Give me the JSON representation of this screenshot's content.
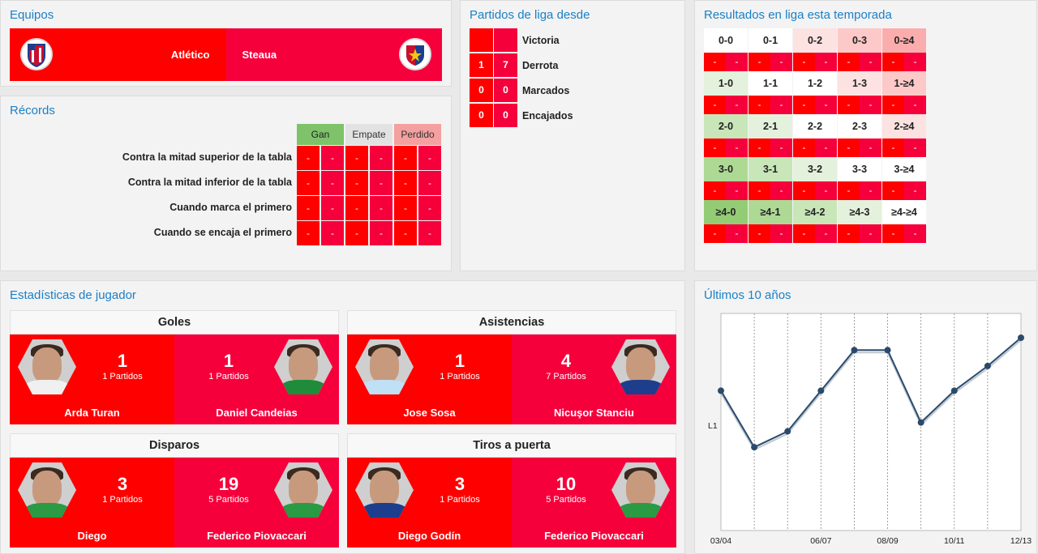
{
  "teams": {
    "title": "Equipos",
    "home": {
      "name": "Atlético",
      "crest": "atletico-crest-icon"
    },
    "away": {
      "name": "Steaua",
      "crest": "steaua-crest-icon"
    }
  },
  "records": {
    "title": "Récords",
    "columns": [
      "Gan",
      "Empate",
      "Perdido"
    ],
    "column_colors": [
      "#7ec26a",
      "#e2e2e2",
      "#f4a0a0"
    ],
    "rows": [
      {
        "label": "Contra la mitad superior de la tabla",
        "cells": [
          "-",
          "-",
          "-",
          "-",
          "-",
          "-"
        ]
      },
      {
        "label": "Contra la mitad inferior de la tabla",
        "cells": [
          "-",
          "-",
          "-",
          "-",
          "-",
          "-"
        ]
      },
      {
        "label": "Cuando marca el primero",
        "cells": [
          "-",
          "-",
          "-",
          "-",
          "-",
          "-"
        ]
      },
      {
        "label": "Cuando se encaja el primero",
        "cells": [
          "-",
          "-",
          "-",
          "-",
          "-",
          "-"
        ]
      }
    ]
  },
  "league_since": {
    "title": "Partidos de liga desde",
    "rows": [
      {
        "label": "Victoria",
        "home": "",
        "away": ""
      },
      {
        "label": "Derrota",
        "home": "1",
        "away": "7"
      },
      {
        "label": "Marcados",
        "home": "0",
        "away": "0"
      },
      {
        "label": "Encajados",
        "home": "0",
        "away": "0"
      }
    ]
  },
  "season_results": {
    "title": "Resultados en liga esta temporada",
    "rows": [
      {
        "scores": [
          "0-0",
          "0-1",
          "0-2",
          "0-3",
          "0-≥4"
        ],
        "colors": [
          "#ffffff",
          "#ffffff",
          "#fde2e2",
          "#fcc8c8",
          "#fbadad"
        ],
        "subs": [
          "-",
          "-",
          "-",
          "-",
          "-",
          "-",
          "-",
          "-",
          "-",
          "-"
        ]
      },
      {
        "scores": [
          "1-0",
          "1-1",
          "1-2",
          "1-3",
          "1-≥4"
        ],
        "colors": [
          "#e4f1dc",
          "#ffffff",
          "#ffffff",
          "#fde2e2",
          "#fcc8c8"
        ],
        "subs": [
          "-",
          "-",
          "-",
          "-",
          "-",
          "-",
          "-",
          "-",
          "-",
          "-"
        ]
      },
      {
        "scores": [
          "2-0",
          "2-1",
          "2-2",
          "2-3",
          "2-≥4"
        ],
        "colors": [
          "#c8e6b8",
          "#e4f1dc",
          "#ffffff",
          "#ffffff",
          "#fde2e2"
        ],
        "subs": [
          "-",
          "-",
          "-",
          "-",
          "-",
          "-",
          "-",
          "-",
          "-",
          "-"
        ]
      },
      {
        "scores": [
          "3-0",
          "3-1",
          "3-2",
          "3-3",
          "3-≥4"
        ],
        "colors": [
          "#aed995",
          "#c8e6b8",
          "#e4f1dc",
          "#ffffff",
          "#ffffff"
        ],
        "subs": [
          "-",
          "-",
          "-",
          "-",
          "-",
          "-",
          "-",
          "-",
          "-",
          "-"
        ]
      },
      {
        "scores": [
          "≥4-0",
          "≥4-1",
          "≥4-2",
          "≥4-3",
          "≥4-≥4"
        ],
        "colors": [
          "#93cc75",
          "#aed995",
          "#c8e6b8",
          "#e4f1dc",
          "#ffffff"
        ],
        "subs": [
          "-",
          "-",
          "-",
          "-",
          "-",
          "-",
          "-",
          "-",
          "-",
          "-"
        ]
      }
    ]
  },
  "player_stats": {
    "title": "Estadísticas de jugador",
    "blocks": [
      {
        "title": "Goles",
        "left": {
          "value": "1",
          "matches": "1 Partidos",
          "name": "Arda Turan",
          "tag": "TURAN",
          "shirt": "#f0f0f0"
        },
        "right": {
          "value": "1",
          "matches": "1 Partidos",
          "name": "Daniel Candeias",
          "tag": "CANDEIAS",
          "shirt": "#1e8c3a"
        }
      },
      {
        "title": "Asistencias",
        "left": {
          "value": "1",
          "matches": "1 Partidos",
          "name": "Jose Sosa",
          "tag": "SOSA",
          "shirt": "#bfe0f5"
        },
        "right": {
          "value": "4",
          "matches": "7 Partidos",
          "name": "Nicuşor Stanciu",
          "tag": "STANCIU",
          "shirt": "#1c3e8c"
        }
      },
      {
        "title": "Disparos",
        "left": {
          "value": "3",
          "matches": "1 Partidos",
          "name": "Diego",
          "tag": "DIEGO",
          "shirt": "#2a9a44"
        },
        "right": {
          "value": "19",
          "matches": "5 Partidos",
          "name": "Federico Piovaccari",
          "tag": "PIOVACCARI",
          "shirt": "#2a9a44"
        }
      },
      {
        "title": "Tiros a puerta",
        "left": {
          "value": "3",
          "matches": "1 Partidos",
          "name": "Diego Godín",
          "tag": "GODIN",
          "shirt": "#1c3e8c"
        },
        "right": {
          "value": "10",
          "matches": "5 Partidos",
          "name": "Federico Piovaccari",
          "tag": "PIOVACCARI",
          "shirt": "#2a9a44"
        }
      }
    ]
  },
  "chart_data": {
    "type": "line",
    "title": "Últimos 10 años",
    "ylabel_tick": "L1",
    "x_labels": [
      "03/04",
      "06/07",
      "08/09",
      "10/11",
      "12/13"
    ],
    "values": [
      0.7,
      0.38,
      0.47,
      0.7,
      0.93,
      0.93,
      0.52,
      0.7,
      0.84,
      1.0
    ],
    "line_color": "#2b4a6b"
  },
  "colors": {
    "red": "#ff0000",
    "red_alt": "#f6003c",
    "accent_title": "#1a7fc6"
  }
}
